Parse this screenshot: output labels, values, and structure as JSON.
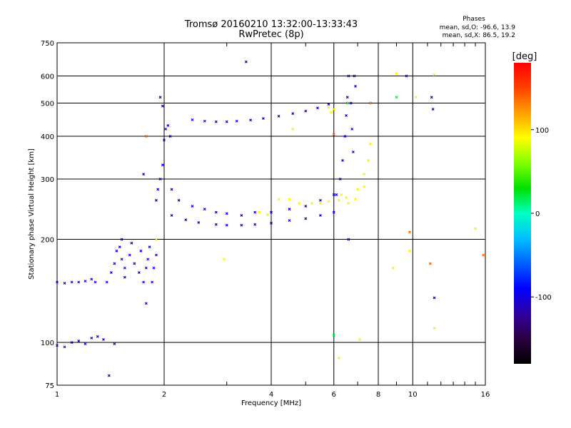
{
  "chart_data": {
    "type": "scatter",
    "title": "Tromsø 20160210 13:32:00-13:33:43",
    "subtitle": "RwPretec (8p)",
    "phases_info": {
      "heading": "Phases",
      "line1": "mean, sd,O: -96.6, 13.9",
      "line2": "mean, sd,X:  86.5, 19.2"
    },
    "xlabel": "Frequency [MHz]",
    "ylabel": "Stationary phase Virtual Height [km]",
    "x_scale": "log",
    "y_scale": "log",
    "xlim": [
      1,
      16
    ],
    "ylim": [
      75,
      750
    ],
    "x_ticks": [
      1,
      2,
      4,
      6,
      8,
      10,
      16
    ],
    "x_tick_labels": [
      "1",
      "2",
      "4",
      "6",
      "8",
      "10",
      "16"
    ],
    "x_minor_ticks": [
      3,
      5,
      7,
      9,
      11,
      12,
      13,
      14,
      15
    ],
    "y_ticks": [
      75,
      100,
      200,
      300,
      400,
      500,
      600,
      750
    ],
    "y_tick_labels": [
      "75",
      "100",
      "200",
      "300",
      "400",
      "500",
      "600",
      "750"
    ],
    "grid": true,
    "colorbar": {
      "label": "[deg]",
      "range": [
        -180,
        180
      ],
      "ticks": [
        100,
        0,
        -100
      ],
      "tick_labels": [
        "100",
        "0",
        "-100"
      ],
      "stops": [
        "#000000",
        "#2a0040",
        "#3000a0",
        "#0000ff",
        "#0060ff",
        "#00c0ff",
        "#00ffc0",
        "#00e000",
        "#80ff00",
        "#ffff00",
        "#ffa000",
        "#ff4000",
        "#ff0000"
      ]
    },
    "series": [
      {
        "phase": -100,
        "points": [
          [
            1.0,
            150
          ],
          [
            1.05,
            149
          ],
          [
            1.1,
            150
          ],
          [
            1.15,
            150
          ],
          [
            1.2,
            151
          ],
          [
            1.25,
            153
          ],
          [
            1.28,
            150
          ],
          [
            1.0,
            98
          ],
          [
            1.05,
            97
          ],
          [
            1.1,
            100
          ],
          [
            1.15,
            101
          ],
          [
            1.2,
            99
          ],
          [
            1.25,
            103
          ],
          [
            1.3,
            104
          ],
          [
            1.35,
            102
          ],
          [
            1.45,
            99
          ],
          [
            1.4,
            80
          ],
          [
            1.38,
            150
          ],
          [
            1.42,
            160
          ],
          [
            1.45,
            170
          ],
          [
            1.47,
            185
          ],
          [
            1.5,
            190
          ],
          [
            1.52,
            175
          ],
          [
            1.55,
            165
          ],
          [
            1.6,
            180
          ],
          [
            1.62,
            195
          ],
          [
            1.65,
            170
          ],
          [
            1.7,
            160
          ],
          [
            1.72,
            185
          ],
          [
            1.75,
            150
          ],
          [
            1.78,
            165
          ],
          [
            1.8,
            175
          ],
          [
            1.82,
            190
          ],
          [
            1.85,
            150
          ],
          [
            1.87,
            165
          ],
          [
            1.9,
            180
          ],
          [
            1.52,
            200
          ],
          [
            1.55,
            155
          ],
          [
            1.78,
            130
          ],
          [
            1.75,
            310
          ],
          [
            1.9,
            260
          ],
          [
            1.92,
            280
          ],
          [
            1.95,
            300
          ],
          [
            1.98,
            330
          ],
          [
            2.0,
            390
          ],
          [
            2.02,
            420
          ],
          [
            2.05,
            430
          ],
          [
            2.08,
            400
          ],
          [
            1.95,
            520
          ],
          [
            1.98,
            490
          ],
          [
            2.1,
            280
          ],
          [
            2.2,
            260
          ],
          [
            2.4,
            250
          ],
          [
            2.6,
            245
          ],
          [
            2.8,
            240
          ],
          [
            3.0,
            238
          ],
          [
            3.3,
            235
          ],
          [
            3.6,
            240
          ],
          [
            4.0,
            240
          ],
          [
            4.5,
            245
          ],
          [
            5.0,
            250
          ],
          [
            5.5,
            260
          ],
          [
            6.0,
            270
          ],
          [
            2.1,
            235
          ],
          [
            2.3,
            228
          ],
          [
            2.5,
            224
          ],
          [
            2.8,
            221
          ],
          [
            3.0,
            220
          ],
          [
            3.3,
            220
          ],
          [
            3.6,
            221
          ],
          [
            4.0,
            223
          ],
          [
            4.5,
            227
          ],
          [
            5.0,
            230
          ],
          [
            5.5,
            235
          ],
          [
            6.0,
            240
          ],
          [
            2.4,
            447
          ],
          [
            2.6,
            443
          ],
          [
            2.8,
            441
          ],
          [
            3.0,
            441
          ],
          [
            3.2,
            443
          ],
          [
            3.5,
            446
          ],
          [
            3.8,
            451
          ],
          [
            4.2,
            458
          ],
          [
            4.6,
            466
          ],
          [
            5.0,
            474
          ],
          [
            5.4,
            484
          ],
          [
            5.8,
            496
          ],
          [
            6.1,
            270
          ],
          [
            6.25,
            300
          ],
          [
            6.35,
            340
          ],
          [
            6.45,
            400
          ],
          [
            6.5,
            460
          ],
          [
            6.55,
            520
          ],
          [
            6.6,
            600
          ],
          [
            6.7,
            500
          ],
          [
            6.75,
            420
          ],
          [
            6.8,
            360
          ],
          [
            6.85,
            600
          ],
          [
            6.9,
            560
          ],
          [
            9.6,
            600
          ],
          [
            11.3,
            520
          ],
          [
            11.4,
            480
          ],
          [
            6.6,
            200
          ],
          [
            11.5,
            135
          ],
          [
            3.4,
            660
          ]
        ]
      },
      {
        "phase": 20,
        "points": [
          [
            6.55,
            500
          ],
          [
            9.0,
            520
          ],
          [
            6.0,
            105
          ]
        ]
      },
      {
        "phase": 95,
        "points": [
          [
            3.7,
            240
          ],
          [
            3.9,
            236
          ],
          [
            4.2,
            262
          ],
          [
            4.5,
            262
          ],
          [
            4.8,
            255
          ],
          [
            5.2,
            255
          ],
          [
            5.5,
            255
          ],
          [
            5.8,
            258
          ],
          [
            6.2,
            260
          ],
          [
            6.5,
            265
          ],
          [
            7.0,
            280
          ],
          [
            7.3,
            310
          ],
          [
            7.5,
            340
          ],
          [
            7.6,
            380
          ],
          [
            5.8,
            485
          ],
          [
            6.0,
            480
          ],
          [
            5.9,
            470
          ],
          [
            6.3,
            270
          ],
          [
            6.6,
            255
          ],
          [
            6.9,
            262
          ],
          [
            7.3,
            285
          ],
          [
            9.0,
            610
          ],
          [
            11.5,
            605
          ],
          [
            11.5,
            110
          ],
          [
            8.8,
            165
          ],
          [
            7.1,
            102
          ],
          [
            1.9,
            200
          ],
          [
            2.95,
            175
          ],
          [
            15.0,
            215
          ],
          [
            6.2,
            90
          ],
          [
            10.2,
            520
          ],
          [
            4.6,
            420
          ],
          [
            9.8,
            185
          ]
        ]
      },
      {
        "phase": 140,
        "points": [
          [
            7.6,
            500
          ],
          [
            9.8,
            210
          ],
          [
            11.2,
            170
          ],
          [
            15.8,
            180
          ],
          [
            1.78,
            400
          ],
          [
            6.0,
            405
          ]
        ]
      }
    ]
  }
}
